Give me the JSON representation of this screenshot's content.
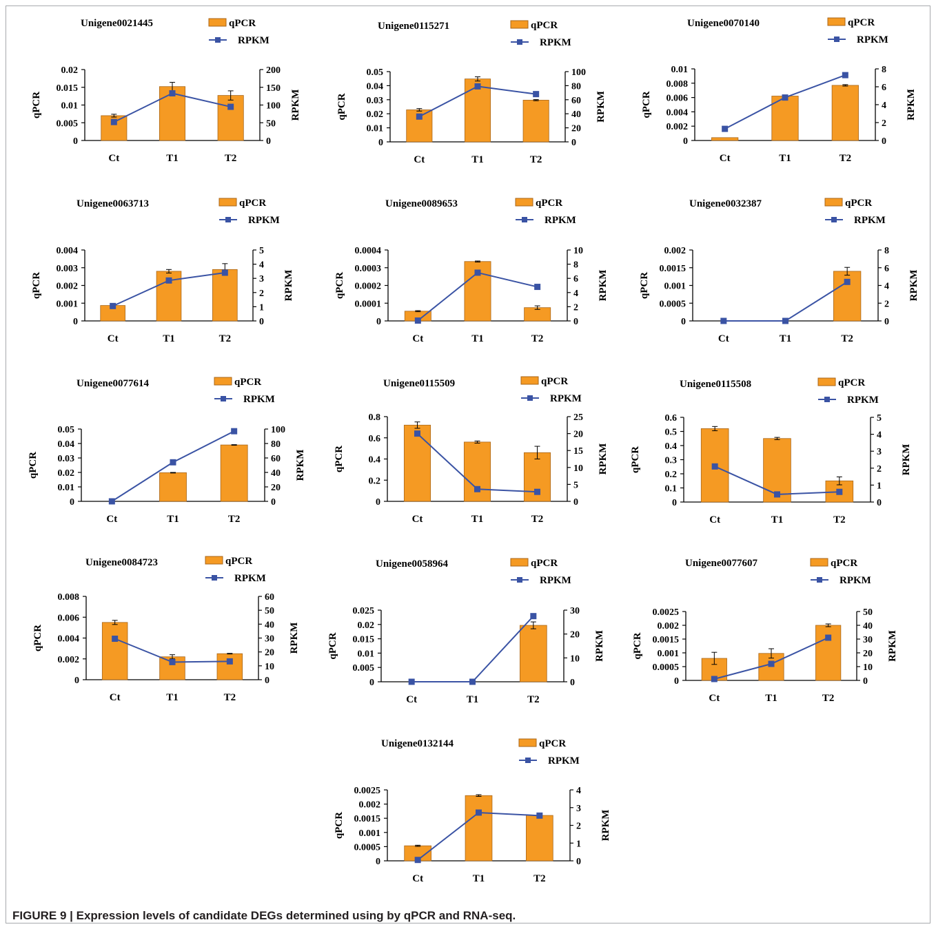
{
  "figure": {
    "caption": "FIGURE 9 | Expression levels of candidate DEGs determined using by qPCR and RNA-seq."
  },
  "colors": {
    "bar": "#f59a23",
    "bar_edge": "#a8661a",
    "line": "#3a53a4",
    "axis": "#000000"
  },
  "chart_data": [
    {
      "type": "bar+line",
      "title": "Unigene0021445",
      "categories": [
        "Ct",
        "T1",
        "T2"
      ],
      "series": [
        {
          "name": "qPCR",
          "type": "bar",
          "axis": "left",
          "values": [
            0.007,
            0.0152,
            0.0127
          ],
          "errors": [
            0.0004,
            0.0012,
            0.0013
          ]
        },
        {
          "name": "RPKM",
          "type": "line",
          "axis": "right",
          "values": [
            52,
            133,
            95
          ]
        }
      ],
      "ylabel": "qPCR",
      "ylabel_right": "RPKM",
      "ylim": [
        0,
        0.02
      ],
      "yticks": [
        "0",
        "0.005",
        "0.01",
        "0.015",
        "0.02"
      ],
      "ylim_right": [
        0,
        200
      ],
      "yticks_right": [
        "0",
        "50",
        "100",
        "150",
        "200"
      ]
    },
    {
      "type": "bar+line",
      "title": "Unigene0115271",
      "categories": [
        "Ct",
        "T1",
        "T2"
      ],
      "series": [
        {
          "name": "qPCR",
          "type": "bar",
          "axis": "left",
          "values": [
            0.0228,
            0.0448,
            0.0297
          ],
          "errors": [
            0.0009,
            0.0015,
            0.0004
          ]
        },
        {
          "name": "RPKM",
          "type": "line",
          "axis": "right",
          "values": [
            36,
            79,
            68
          ]
        }
      ],
      "ylabel": "qPCR",
      "ylabel_right": "RPKM",
      "ylim": [
        0,
        0.05
      ],
      "yticks": [
        "0",
        "0.01",
        "0.02",
        "0.03",
        "0.04",
        "0.05"
      ],
      "ylim_right": [
        0,
        100
      ],
      "yticks_right": [
        "0",
        "20",
        "40",
        "60",
        "80",
        "100"
      ]
    },
    {
      "type": "bar+line",
      "title": "Unigene0070140",
      "categories": [
        "Ct",
        "T1",
        "T2"
      ],
      "series": [
        {
          "name": "qPCR",
          "type": "bar",
          "axis": "left",
          "values": [
            0.0004,
            0.0062,
            0.0077
          ],
          "errors": [
            0.0,
            0.0,
            0.0001
          ]
        },
        {
          "name": "RPKM",
          "type": "line",
          "axis": "right",
          "values": [
            1.3,
            4.8,
            7.3
          ]
        }
      ],
      "ylabel": "qPCR",
      "ylabel_right": "RPKM",
      "ylim": [
        0,
        0.01
      ],
      "yticks": [
        "0",
        "0.002",
        "0.004",
        "0.006",
        "0.008",
        "0.01"
      ],
      "ylim_right": [
        0,
        8
      ],
      "yticks_right": [
        "0",
        "2",
        "4",
        "6",
        "8"
      ]
    },
    {
      "type": "bar+line",
      "title": "Unigene0063713",
      "categories": [
        "Ct",
        "T1",
        "T2"
      ],
      "series": [
        {
          "name": "qPCR",
          "type": "bar",
          "axis": "left",
          "values": [
            0.00087,
            0.0028,
            0.0029
          ],
          "errors": [
            0.0001,
            0.0001,
            0.00033
          ]
        },
        {
          "name": "RPKM",
          "type": "line",
          "axis": "right",
          "values": [
            1.05,
            2.85,
            3.4
          ]
        }
      ],
      "ylabel": "qPCR",
      "ylabel_right": "RPKM",
      "ylim": [
        0,
        0.004
      ],
      "yticks": [
        "0",
        "0.001",
        "0.002",
        "0.003",
        "0.004"
      ],
      "ylim_right": [
        0,
        5
      ],
      "yticks_right": [
        "0",
        "1",
        "2",
        "3",
        "4",
        "5"
      ]
    },
    {
      "type": "bar+line",
      "title": "Unigene0089653",
      "categories": [
        "Ct",
        "T1",
        "T2"
      ],
      "series": [
        {
          "name": "qPCR",
          "type": "bar",
          "axis": "left",
          "values": [
            5.5e-05,
            0.000335,
            7.5e-05
          ],
          "errors": [
            3e-06,
            3e-06,
            1e-05
          ]
        },
        {
          "name": "RPKM",
          "type": "line",
          "axis": "right",
          "values": [
            0.05,
            6.8,
            4.8
          ]
        }
      ],
      "ylabel": "qPCR",
      "ylabel_right": "RPKM",
      "ylim": [
        0,
        0.0004
      ],
      "yticks": [
        "0",
        "0.0001",
        "0.0002",
        "0.0003",
        "0.0004"
      ],
      "ylim_right": [
        0,
        10
      ],
      "yticks_right": [
        "0",
        "2",
        "4",
        "6",
        "8",
        "10"
      ]
    },
    {
      "type": "bar+line",
      "title": "Unigene0032387",
      "categories": [
        "Ct",
        "T1",
        "T2"
      ],
      "series": [
        {
          "name": "qPCR",
          "type": "bar",
          "axis": "left",
          "values": [
            0,
            0,
            0.0014
          ],
          "errors": [
            0,
            0,
            0.00011
          ]
        },
        {
          "name": "RPKM",
          "type": "line",
          "axis": "right",
          "values": [
            0,
            0,
            4.4
          ]
        }
      ],
      "ylabel": "qPCR",
      "ylabel_right": "RPKM",
      "ylim": [
        0,
        0.002
      ],
      "yticks": [
        "0",
        "0.0005",
        "0.001",
        "0.0015",
        "0.002"
      ],
      "ylim_right": [
        0,
        8
      ],
      "yticks_right": [
        "0",
        "2",
        "4",
        "6",
        "8"
      ]
    },
    {
      "type": "bar+line",
      "title": "Unigene0077614",
      "categories": [
        "Ct",
        "T1",
        "T2"
      ],
      "series": [
        {
          "name": "qPCR",
          "type": "bar",
          "axis": "left",
          "values": [
            0,
            0.0198,
            0.039
          ],
          "errors": [
            0,
            0.0002,
            0.0002
          ]
        },
        {
          "name": "RPKM",
          "type": "line",
          "axis": "right",
          "values": [
            0,
            54,
            97
          ]
        }
      ],
      "ylabel": "qPCR",
      "ylabel_right": "RPKM",
      "ylim": [
        0,
        0.05
      ],
      "yticks": [
        "0",
        "0.01",
        "0.02",
        "0.03",
        "0.04",
        "0.05"
      ],
      "ylim_right": [
        0,
        100
      ],
      "yticks_right": [
        "0",
        "20",
        "40",
        "60",
        "80",
        "100"
      ]
    },
    {
      "type": "bar+line",
      "title": "Unigene0115509",
      "categories": [
        "Ct",
        "T1",
        "T2"
      ],
      "series": [
        {
          "name": "qPCR",
          "type": "bar",
          "axis": "left",
          "values": [
            0.72,
            0.56,
            0.46
          ],
          "errors": [
            0.03,
            0.01,
            0.06
          ]
        },
        {
          "name": "RPKM",
          "type": "line",
          "axis": "right",
          "values": [
            20,
            3.6,
            2.8
          ]
        }
      ],
      "ylabel": "qPCR",
      "ylabel_right": "RPKM",
      "ylim": [
        0,
        0.8
      ],
      "yticks": [
        "0",
        "0.2",
        "0.4",
        "0.6",
        "0.8"
      ],
      "ylim_right": [
        0,
        25
      ],
      "yticks_right": [
        "0",
        "5",
        "10",
        "15",
        "20",
        "25"
      ]
    },
    {
      "type": "bar+line",
      "title": "Unigene0115508",
      "categories": [
        "Ct",
        "T1",
        "T2"
      ],
      "series": [
        {
          "name": "qPCR",
          "type": "bar",
          "axis": "left",
          "values": [
            0.52,
            0.45,
            0.15
          ],
          "errors": [
            0.015,
            0.008,
            0.028
          ]
        },
        {
          "name": "RPKM",
          "type": "line",
          "axis": "right",
          "values": [
            2.1,
            0.45,
            0.6
          ]
        }
      ],
      "ylabel": "qPCR",
      "ylabel_right": "RPKM",
      "ylim": [
        0,
        0.6
      ],
      "yticks": [
        "0",
        "0.1",
        "0.2",
        "0.3",
        "0.4",
        "0.5",
        "0.6"
      ],
      "ylim_right": [
        0,
        5
      ],
      "yticks_right": [
        "0",
        "1",
        "2",
        "3",
        "4",
        "5"
      ]
    },
    {
      "type": "bar+line",
      "title": "Unigene0084723",
      "categories": [
        "Ct",
        "T1",
        "T2"
      ],
      "series": [
        {
          "name": "qPCR",
          "type": "bar",
          "axis": "left",
          "values": [
            0.0055,
            0.0022,
            0.0025
          ],
          "errors": [
            0.0002,
            0.0002,
            3e-05
          ]
        },
        {
          "name": "RPKM",
          "type": "line",
          "axis": "right",
          "values": [
            29.5,
            12.7,
            13.2
          ]
        }
      ],
      "ylabel": "qPCR",
      "ylabel_right": "RPKM",
      "ylim": [
        0,
        0.008
      ],
      "yticks": [
        "0",
        "0.002",
        "0.004",
        "0.006",
        "0.008"
      ],
      "ylim_right": [
        0,
        60
      ],
      "yticks_right": [
        "0",
        "10",
        "20",
        "30",
        "40",
        "50",
        "60"
      ]
    },
    {
      "type": "bar+line",
      "title": "Unigene0058964",
      "categories": [
        "Ct",
        "T1",
        "T2"
      ],
      "series": [
        {
          "name": "qPCR",
          "type": "bar",
          "axis": "left",
          "values": [
            0,
            0,
            0.0197
          ],
          "errors": [
            0,
            0,
            0.0012
          ]
        },
        {
          "name": "RPKM",
          "type": "line",
          "axis": "right",
          "values": [
            0,
            0,
            27.5
          ]
        }
      ],
      "ylabel": "qPCR",
      "ylabel_right": "RPKM",
      "ylim": [
        0,
        0.025
      ],
      "yticks": [
        "0",
        "0.005",
        "0.01",
        "0.015",
        "0.02",
        "0.025"
      ],
      "ylim_right": [
        0,
        30
      ],
      "yticks_right": [
        "0",
        "10",
        "20",
        "30"
      ]
    },
    {
      "type": "bar+line",
      "title": "Unigene0077607",
      "categories": [
        "Ct",
        "T1",
        "T2"
      ],
      "series": [
        {
          "name": "qPCR",
          "type": "bar",
          "axis": "left",
          "values": [
            0.0008,
            0.00098,
            0.002
          ],
          "errors": [
            0.00022,
            0.00017,
            5e-05
          ]
        },
        {
          "name": "RPKM",
          "type": "line",
          "axis": "right",
          "values": [
            1,
            12,
            31
          ]
        }
      ],
      "ylabel": "qPCR",
      "ylabel_right": "RPKM",
      "ylim": [
        0,
        0.0025
      ],
      "yticks": [
        "0",
        "0.0005",
        "0.001",
        "0.0015",
        "0.002",
        "0.0025"
      ],
      "ylim_right": [
        0,
        50
      ],
      "yticks_right": [
        "0",
        "10",
        "20",
        "30",
        "40",
        "50"
      ]
    },
    {
      "type": "bar+line",
      "title": "Unigene0132144",
      "categories": [
        "Ct",
        "T1",
        "T2"
      ],
      "series": [
        {
          "name": "qPCR",
          "type": "bar",
          "axis": "left",
          "values": [
            0.00053,
            0.0023,
            0.0016
          ],
          "errors": [
            2e-05,
            3e-05,
            0.0
          ]
        },
        {
          "name": "RPKM",
          "type": "line",
          "axis": "right",
          "values": [
            0.05,
            2.72,
            2.55
          ]
        }
      ],
      "ylabel": "qPCR",
      "ylabel_right": "RPKM",
      "ylim": [
        0,
        0.0025
      ],
      "yticks": [
        "0",
        "0.0005",
        "0.001",
        "0.0015",
        "0.002",
        "0.0025"
      ],
      "ylim_right": [
        0,
        4
      ],
      "yticks_right": [
        "0",
        "1",
        "2",
        "3",
        "4"
      ]
    }
  ]
}
